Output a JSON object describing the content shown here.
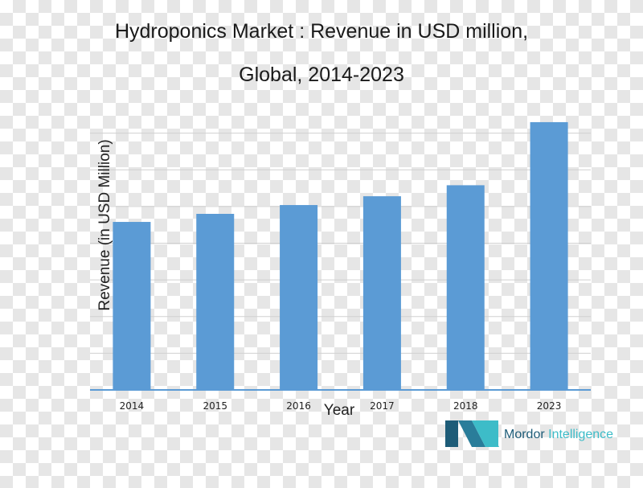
{
  "chart_data": {
    "type": "bar",
    "title_lines": [
      "Hydroponics Market : Revenue in USD million,",
      "Global,  2014-2023"
    ],
    "xlabel": "Year",
    "ylabel": "Revenue (in USD Million)",
    "categories": [
      "2014",
      "2015",
      "2016",
      "2017",
      "2018",
      "2023"
    ],
    "values": [
      229,
      240,
      252,
      264,
      279,
      365
    ],
    "ylim": [
      0,
      400
    ],
    "grid": true,
    "legend": "none",
    "bar_color": "#5b9bd5",
    "axis_color": "#5b9bd5",
    "grid_color": "#d0d0d0"
  },
  "branding": {
    "name_part1": "Mordor",
    "name_part2": " Intelligence",
    "color_dark": "#1e5c78",
    "color_light": "#3dbcc8"
  }
}
